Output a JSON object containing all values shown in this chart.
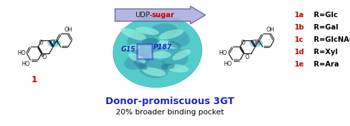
{
  "title": "Donor-promiscuous 3GT",
  "subtitle": "20% broader binding pocket",
  "title_color": "#2222cc",
  "subtitle_color": "#000000",
  "udp_label_black": "UDP-",
  "udp_label_red": "sugar",
  "g15_label": "G15",
  "p187_label": "P187",
  "g15_color": "#2222cc",
  "p187_color": "#2222cc",
  "compound1_label": "1",
  "compound1_color": "#cc0000",
  "legend_items": [
    {
      "label_num": "1a",
      "label_r": "R=Glc"
    },
    {
      "label_num": "1b",
      "label_r": "R=Gal"
    },
    {
      "label_num": "1c",
      "label_r": "R=GlcNAc"
    },
    {
      "label_num": "1d",
      "label_r": "R=Xyl"
    },
    {
      "label_num": "1e",
      "label_r": "R=Ara"
    }
  ],
  "legend_num_color": "#cc0000",
  "legend_r_color": "#000000",
  "arrow_facecolor": "#aaaadd",
  "arrow_edgecolor": "#6666aa",
  "box_color": "#2222cc",
  "highlight_color": "#77ddee",
  "bg_color": "#ffffff",
  "protein_color_main": "#55cccc",
  "protein_color_mid": "#33aaaa",
  "protein_color_dark": "#227799",
  "protein_color_light": "#99eedd",
  "bond_color": "#111111",
  "label_color": "#111111"
}
